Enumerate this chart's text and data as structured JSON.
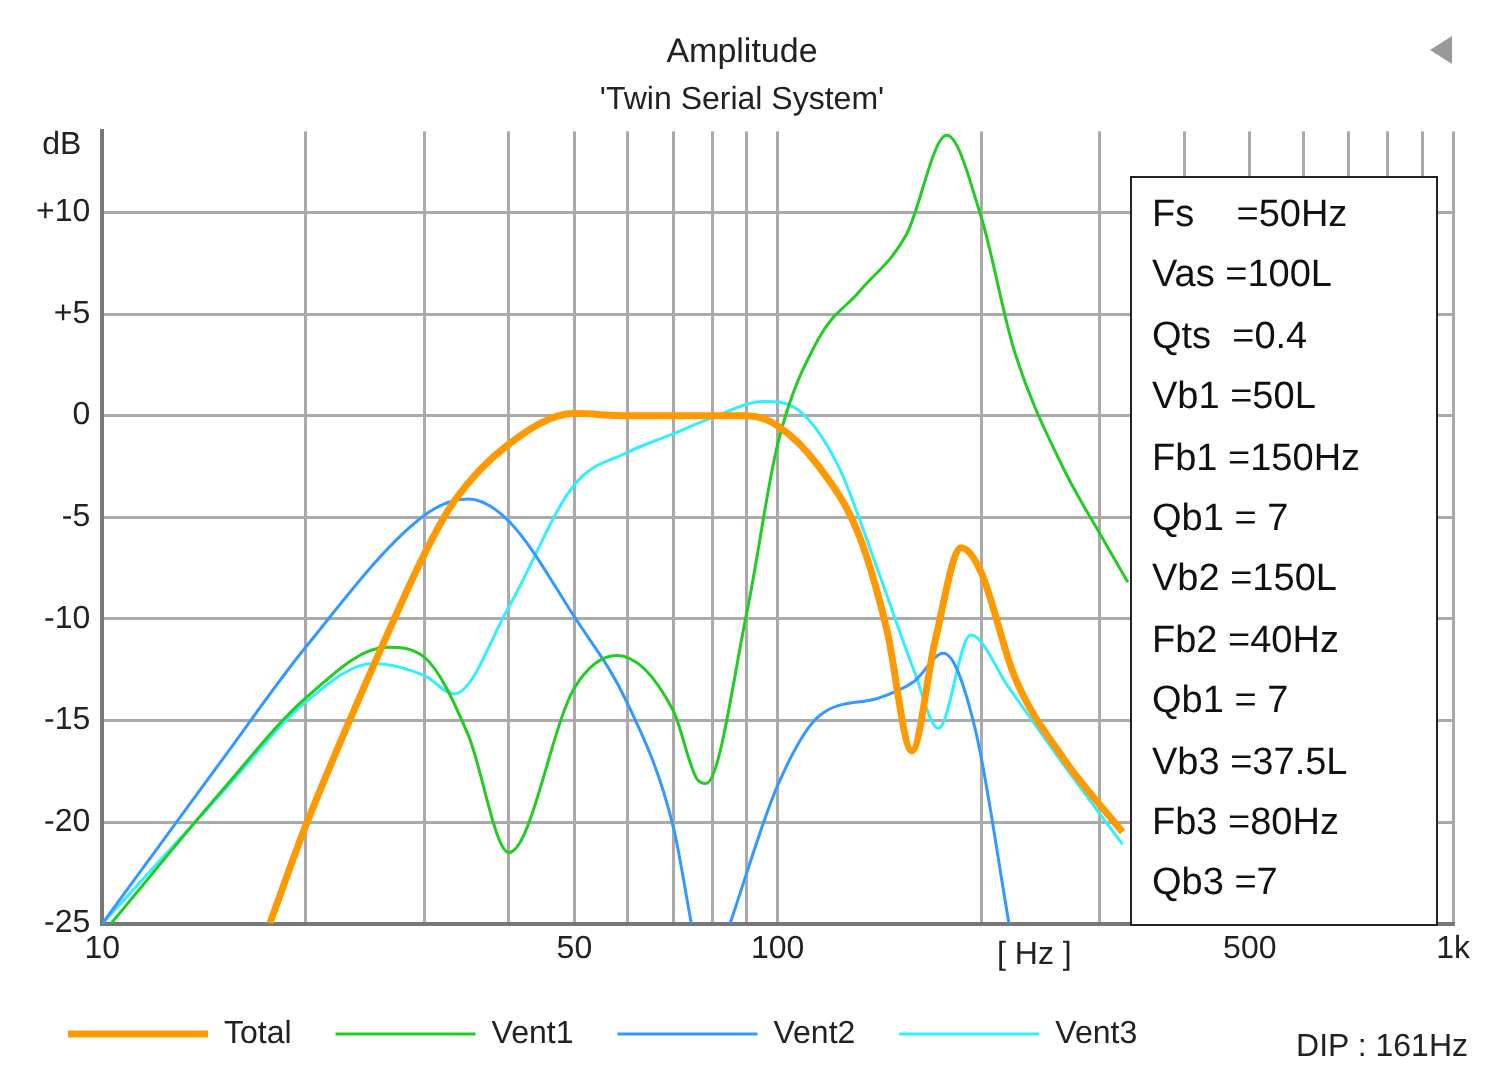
{
  "chart_data": {
    "type": "line",
    "title": "Amplitude",
    "subtitle": "'Twin Serial System'",
    "xlabel": "[ Hz ]",
    "ylabel": "dB",
    "log": "x",
    "grid": true,
    "legend": "bottom",
    "marker": "none",
    "xlim": [
      10,
      1000
    ],
    "ylim": [
      -25,
      14
    ],
    "xticks": [
      10,
      {
        "value": 20,
        "label": null
      },
      {
        "value": 30,
        "label": null
      },
      {
        "value": 40,
        "label": null
      },
      50,
      {
        "value": 60,
        "label": null
      },
      {
        "value": 70,
        "label": null
      },
      {
        "value": 80,
        "label": null
      },
      {
        "value": 90,
        "label": null
      },
      100,
      {
        "value": 200,
        "label": null
      },
      {
        "value": 300,
        "label": null
      },
      {
        "value": 400,
        "label": null
      },
      500,
      {
        "value": 600,
        "label": null
      },
      {
        "value": 700,
        "label": null
      },
      {
        "value": 800,
        "label": null
      },
      {
        "value": 900,
        "label": null
      },
      {
        "value": 1000,
        "label": "1k"
      }
    ],
    "yticks": [
      {
        "value": 10,
        "label": "+10"
      },
      {
        "value": 5,
        "label": "+5"
      },
      0,
      -5,
      -10,
      -15,
      -20,
      -25
    ],
    "series": [
      {
        "name": "Total",
        "color": "#ff9900",
        "x": [
          17.7,
          20,
          26.4,
          30,
          33.2,
          40,
          50,
          60,
          70,
          80,
          90,
          100,
          115,
          132,
          145,
          158,
          171,
          187,
          200,
          224,
          264,
          324
        ],
        "values": [
          -25,
          -20.2,
          -10.8,
          -6.8,
          -4.2,
          -1.4,
          0.1,
          0,
          0,
          0,
          0,
          -0.5,
          -2.5,
          -5.9,
          -10.5,
          -16.5,
          -11.1,
          -6.5,
          -7.7,
          -12.8,
          -16.8,
          -20.5
        ]
      },
      {
        "name": "Vent1",
        "color": "#22cc22",
        "x": [
          10.3,
          15,
          20,
          26.4,
          30,
          34.8,
          40,
          50,
          57.8,
          70,
          76,
          78.3,
          90,
          100,
          115,
          132,
          155,
          178,
          200,
          224,
          264,
          301,
          330
        ],
        "values": [
          -25,
          -18.5,
          -13.9,
          -11.4,
          -11.9,
          -15.7,
          -21.5,
          -13.4,
          -11.8,
          -14.5,
          -17.9,
          -18.1,
          -9.7,
          -1.4,
          3.8,
          6.1,
          8.9,
          13.8,
          9.8,
          3.2,
          -2.5,
          -5.9,
          -8.2
        ]
      },
      {
        "name": "Vent2",
        "color": "#3399ff",
        "x": [
          10,
          15,
          20,
          30,
          34.8,
          40,
          50,
          60,
          70,
          74.5,
          80,
          85,
          100,
          115,
          141,
          159,
          176,
          196,
          220
        ],
        "values": [
          -25,
          -17,
          -11.4,
          -4.9,
          -4.1,
          -5.2,
          -9.9,
          -14.2,
          -20.2,
          -25,
          null,
          -25,
          -18.2,
          -14.8,
          -13.9,
          -13.1,
          -11.7,
          -15.4,
          -25
        ]
      },
      {
        "name": "Vent3",
        "color": "#33eeff",
        "x": [
          10,
          15,
          20,
          25.2,
          30,
          33.2,
          40,
          50,
          60,
          70,
          80,
          95.5,
          107,
          123,
          141,
          159,
          173,
          193,
          220,
          264,
          324
        ],
        "values": [
          -25,
          -18.6,
          -14.1,
          -12.2,
          -12.8,
          -13.7,
          -9.4,
          -3.4,
          -1.8,
          -0.9,
          -0.1,
          0.7,
          0.3,
          -2.5,
          -7.7,
          -12.5,
          -15.4,
          -10.8,
          -13.4,
          -17.1,
          -21.1
        ]
      }
    ],
    "annotations": [
      "Fs    =50Hz",
      "Vas =100L",
      "Qts  =0.4",
      "Vb1 =50L",
      "Fb1 =150Hz",
      "Qb1 = 7",
      "Vb2 =150L",
      "Fb2 =40Hz",
      "Qb1 = 7",
      "Vb3 =37.5L",
      "Fb3 =80Hz",
      "Qb3 =7",
      "DIP : 161Hz"
    ]
  }
}
